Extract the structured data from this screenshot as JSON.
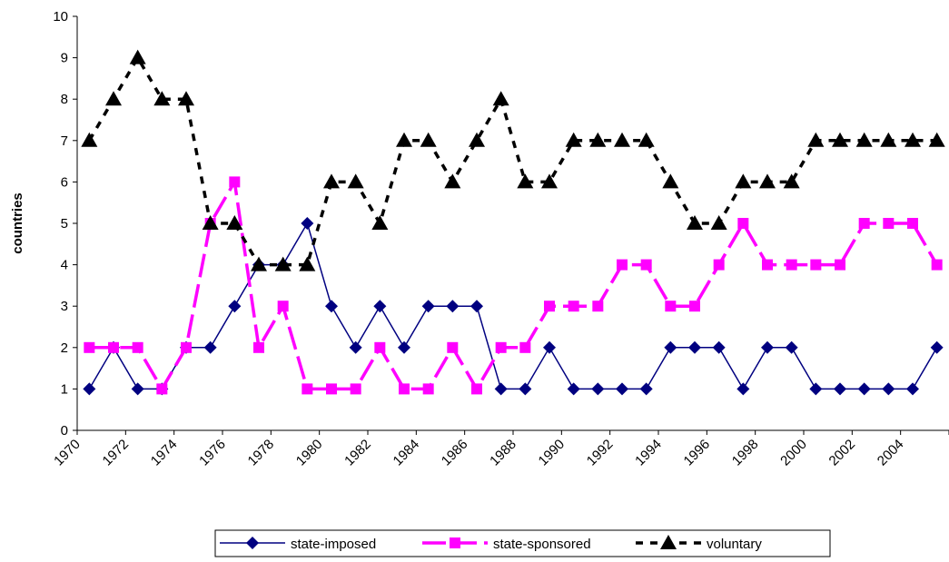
{
  "chart_data": {
    "type": "line",
    "y_label": "countries",
    "categories": [
      "1970",
      null,
      "1972",
      null,
      "1974",
      null,
      "1976",
      null,
      "1978",
      null,
      "1980",
      null,
      "1982",
      null,
      "1984",
      null,
      "1986",
      null,
      "1988",
      null,
      "1990",
      null,
      "1992",
      null,
      "1994",
      null,
      "1996",
      null,
      "1998",
      null,
      "2000",
      null,
      "2002",
      null,
      "2004",
      null
    ],
    "series": [
      {
        "name": "state-imposed",
        "color": "#000080",
        "values": [
          1,
          2,
          1,
          1,
          2,
          2,
          3,
          4,
          4,
          5,
          3,
          2,
          3,
          2,
          3,
          3,
          3,
          1,
          1,
          2,
          1,
          1,
          1,
          1,
          2,
          2,
          2,
          1,
          2,
          2,
          1,
          1,
          1,
          1,
          1,
          2
        ]
      },
      {
        "name": "state-sponsored",
        "color": "#ff00ff",
        "values": [
          2,
          2,
          2,
          1,
          2,
          5,
          6,
          2,
          3,
          1,
          1,
          1,
          2,
          1,
          1,
          2,
          1,
          2,
          2,
          3,
          3,
          3,
          4,
          4,
          3,
          3,
          4,
          5,
          4,
          4,
          4,
          4,
          5,
          5,
          5,
          4
        ]
      },
      {
        "name": "voluntary",
        "color": "#000000",
        "values": [
          7,
          8,
          9,
          8,
          8,
          5,
          5,
          4,
          4,
          4,
          6,
          6,
          5,
          7,
          7,
          6,
          7,
          8,
          6,
          6,
          7,
          7,
          7,
          7,
          6,
          5,
          5,
          6,
          6,
          6,
          7,
          7,
          7,
          7,
          7,
          7
        ]
      }
    ],
    "ylim": [
      0,
      10
    ],
    "yticks": [
      0,
      1,
      2,
      3,
      4,
      5,
      6,
      7,
      8,
      9,
      10
    ]
  }
}
